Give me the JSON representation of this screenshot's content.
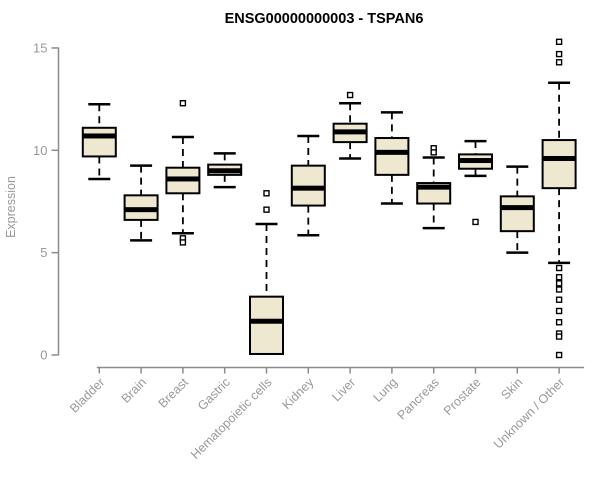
{
  "title": "ENSG00000000003 - TSPAN6",
  "chart_data": {
    "type": "boxplot",
    "title": "ENSG00000000003 - TSPAN6",
    "xlabel": "",
    "ylabel": "Expression",
    "ylim": [
      0,
      15.5
    ],
    "yticks": [
      0,
      5,
      10,
      15
    ],
    "grid": false,
    "legend": "none",
    "colors": {
      "box_fill": "#EFE8D0",
      "box_border": "#000000",
      "median": "#000000",
      "whisker": "#000000",
      "outlier_fill": "#ffffff",
      "axis": "#8C8C8C",
      "tick_label": "#999999",
      "title": "#000000"
    },
    "categories": [
      "Bladder",
      "Brain",
      "Breast",
      "Gastric",
      "Hematopoietic cells",
      "Kidney",
      "Liver",
      "Lung",
      "Pancreas",
      "Prostate",
      "Skin",
      "Unknown / Other"
    ],
    "series": [
      {
        "category": "Bladder",
        "whisker_low": 8.6,
        "q1": 9.7,
        "median": 10.7,
        "q3": 11.1,
        "whisker_high": 12.25,
        "outliers": []
      },
      {
        "category": "Brain",
        "whisker_low": 5.6,
        "q1": 6.6,
        "median": 7.1,
        "q3": 7.8,
        "whisker_high": 9.25,
        "outliers": []
      },
      {
        "category": "Breast",
        "whisker_low": 5.95,
        "q1": 7.9,
        "median": 8.6,
        "q3": 9.15,
        "whisker_high": 10.65,
        "outliers": [
          12.3,
          5.7,
          5.5
        ]
      },
      {
        "category": "Gastric",
        "whisker_low": 8.2,
        "q1": 8.8,
        "median": 9.0,
        "q3": 9.3,
        "whisker_high": 9.85,
        "outliers": []
      },
      {
        "category": "Hematopoietic cells",
        "whisker_low": 0.05,
        "q1": 0.05,
        "median": 1.65,
        "q3": 2.85,
        "whisker_high": 6.4,
        "outliers": [
          7.9,
          7.1
        ]
      },
      {
        "category": "Kidney",
        "whisker_low": 5.85,
        "q1": 7.3,
        "median": 8.15,
        "q3": 9.25,
        "whisker_high": 10.7,
        "outliers": []
      },
      {
        "category": "Liver",
        "whisker_low": 9.6,
        "q1": 10.4,
        "median": 10.9,
        "q3": 11.3,
        "whisker_high": 12.3,
        "outliers": [
          12.7
        ]
      },
      {
        "category": "Lung",
        "whisker_low": 7.4,
        "q1": 8.8,
        "median": 9.9,
        "q3": 10.6,
        "whisker_high": 11.85,
        "outliers": []
      },
      {
        "category": "Pancreas",
        "whisker_low": 6.2,
        "q1": 7.4,
        "median": 8.2,
        "q3": 8.4,
        "whisker_high": 9.65,
        "outliers": [
          10.1,
          9.9
        ]
      },
      {
        "category": "Prostate",
        "whisker_low": 8.75,
        "q1": 9.1,
        "median": 9.5,
        "q3": 9.8,
        "whisker_high": 10.45,
        "outliers": [
          6.5
        ]
      },
      {
        "category": "Skin",
        "whisker_low": 5.0,
        "q1": 6.05,
        "median": 7.2,
        "q3": 7.75,
        "whisker_high": 9.2,
        "outliers": []
      },
      {
        "category": "Unknown / Other",
        "whisker_low": 4.5,
        "q1": 8.15,
        "median": 9.6,
        "q3": 10.5,
        "whisker_high": 13.3,
        "outliers": [
          15.3,
          14.7,
          14.3,
          4.25,
          3.8,
          3.5,
          3.2,
          2.7,
          2.15,
          1.6,
          1.05,
          0.9,
          0.0
        ]
      }
    ]
  }
}
